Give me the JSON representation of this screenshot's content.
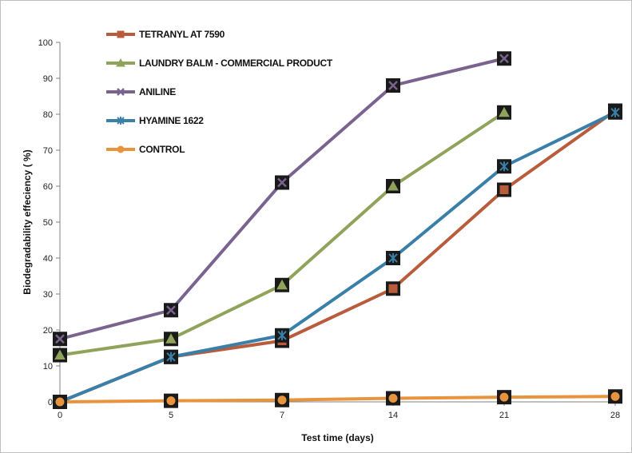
{
  "chart_data": {
    "type": "line",
    "xlabel": "Test time (days)",
    "ylabel": "Biodegradability effeciency ( %)",
    "categories": [
      "0",
      "5",
      "7",
      "14",
      "21",
      "28"
    ],
    "ylim": [
      0,
      100
    ],
    "yticks": [
      "0",
      "10",
      "20",
      "30",
      "40",
      "50",
      "60",
      "70",
      "80",
      "90",
      "100"
    ],
    "grid": false,
    "legend_position": "top-left",
    "series": [
      {
        "name": "TETRANYL AT 7590",
        "color": "#b85c3c",
        "marker": "square",
        "values": [
          0,
          12.5,
          17,
          31.5,
          59,
          81
        ]
      },
      {
        "name": "LAUNDRY BALM - COMMERCIAL PRODUCT",
        "color": "#8fa35a",
        "marker": "triangle",
        "values": [
          13,
          17.5,
          32.5,
          60,
          80.5,
          null
        ]
      },
      {
        "name": "ANILINE",
        "color": "#7b6390",
        "marker": "x",
        "values": [
          17.5,
          25.5,
          61,
          88,
          95.5,
          null
        ]
      },
      {
        "name": "HYAMINE 1622",
        "color": "#3a7fa8",
        "marker": "star",
        "values": [
          0,
          12.5,
          18.5,
          40,
          65.5,
          80.5
        ]
      },
      {
        "name": "CONTROL",
        "color": "#e8943e",
        "marker": "circle",
        "values": [
          0,
          0.3,
          0.5,
          1,
          1.3,
          1.5
        ]
      }
    ]
  }
}
